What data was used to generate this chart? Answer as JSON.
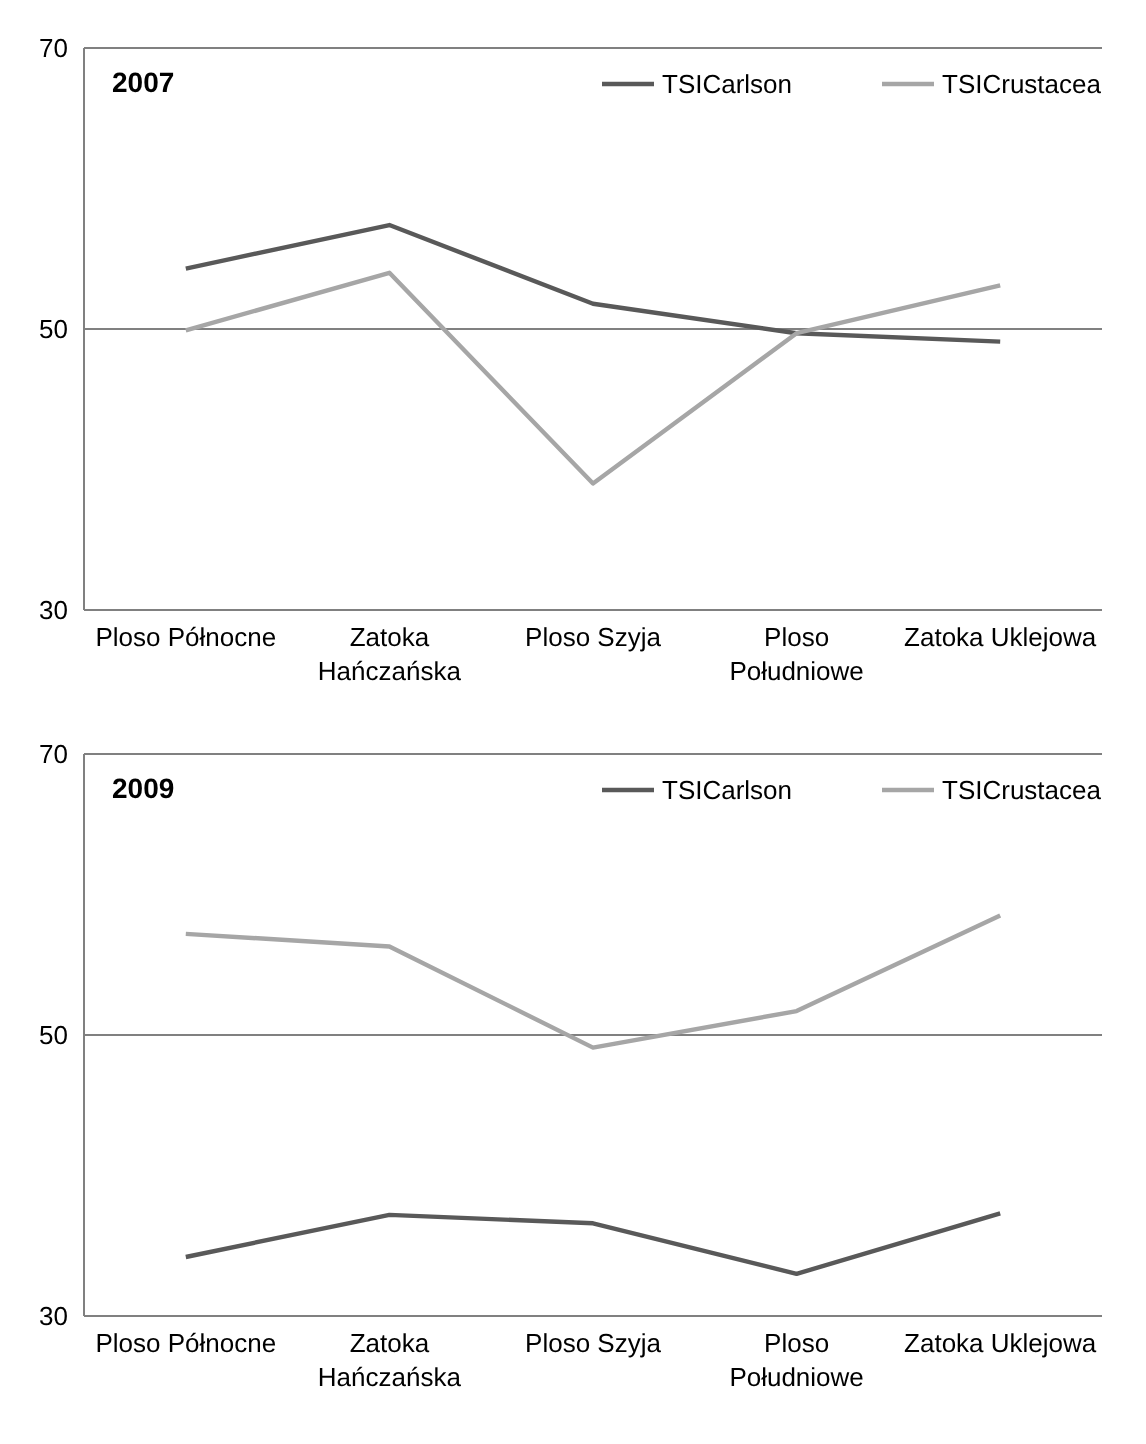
{
  "chart_data": [
    {
      "type": "line",
      "title": "2007",
      "categories": [
        "Ploso Północne",
        "Zatoka Hańczańska",
        "Ploso Szyja",
        "Ploso Południowe",
        "Zatoka Uklejowa"
      ],
      "series": [
        {
          "name": "TSICarlson",
          "color": "#595959",
          "values": [
            54.3,
            57.4,
            51.8,
            49.7,
            49.1
          ]
        },
        {
          "name": "TSICrustacea",
          "color": "#a6a6a6",
          "values": [
            49.9,
            54.0,
            39.0,
            49.7,
            53.1
          ]
        }
      ],
      "ylim": [
        30,
        70
      ],
      "yticks": [
        30,
        50,
        70
      ],
      "grid": "y",
      "legend": "top right"
    },
    {
      "type": "line",
      "title": "2009",
      "categories": [
        "Ploso Północne",
        "Zatoka Hańczańska",
        "Ploso Szyja",
        "Ploso Południowe",
        "Zatoka Uklejowa"
      ],
      "series": [
        {
          "name": "TSICarlson",
          "color": "#595959",
          "values": [
            34.2,
            37.2,
            36.6,
            33.0,
            37.3
          ]
        },
        {
          "name": "TSICrustacea",
          "color": "#a6a6a6",
          "values": [
            57.2,
            56.3,
            49.1,
            51.7,
            58.5
          ]
        }
      ],
      "ylim": [
        30,
        70
      ],
      "yticks": [
        30,
        50,
        70
      ],
      "grid": "y",
      "legend": "top right"
    }
  ]
}
